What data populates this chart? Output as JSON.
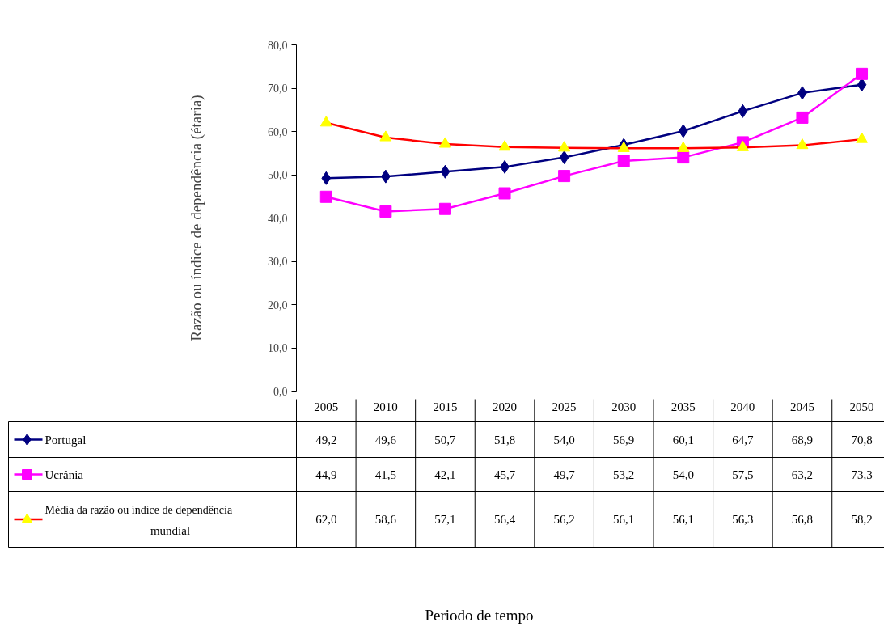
{
  "chart_data": {
    "type": "line",
    "ylabel": "Razão ou índice de dependência (étaria)",
    "annotations": [
      "Periodo de tempo"
    ],
    "categories": [
      "2005",
      "2010",
      "2015",
      "2020",
      "2025",
      "2030",
      "2035",
      "2040",
      "2045",
      "2050"
    ],
    "series": [
      {
        "name": "Portugal",
        "color": "#000080",
        "marker": "diamond",
        "values": [
          49.2,
          49.6,
          50.7,
          51.8,
          54.0,
          56.9,
          60.1,
          64.7,
          68.9,
          70.8
        ],
        "value_labels": [
          "49,2",
          "49,6",
          "50,7",
          "51,8",
          "54,0",
          "56,9",
          "60,1",
          "64,7",
          "68,9",
          "70,8"
        ]
      },
      {
        "name": "Ucrânia",
        "color": "#ff00ff",
        "marker": "square",
        "values": [
          44.9,
          41.5,
          42.1,
          45.7,
          49.7,
          53.2,
          54.0,
          57.5,
          63.2,
          73.3
        ],
        "value_labels": [
          "44,9",
          "41,5",
          "42,1",
          "45,7",
          "49,7",
          "53,2",
          "54,0",
          "57,5",
          "63,2",
          "73,3"
        ]
      },
      {
        "name": "Média da razão ou índice de dependência mundial",
        "color": "#ff0000",
        "colors": [
          "#ffff00",
          "#ffff00",
          "#ffff00",
          "#ffff00",
          "#ffff00",
          "#ffff00",
          "#ffff00",
          "#ffff00",
          "#ffff00",
          "#ffff00"
        ],
        "marker": "triangle",
        "values": [
          62.0,
          58.6,
          57.1,
          56.4,
          56.2,
          56.1,
          56.1,
          56.3,
          56.8,
          58.2
        ],
        "value_labels": [
          "62,0",
          "58,6",
          "57,1",
          "56,4",
          "56,2",
          "56,1",
          "56,1",
          "56,3",
          "56,8",
          "58,2"
        ]
      }
    ],
    "ylim": [
      0,
      80
    ],
    "yticks": [
      {
        "value": 0,
        "label": "0,0"
      },
      {
        "value": 10,
        "label": "10,0"
      },
      {
        "value": 20,
        "label": "20,0"
      },
      {
        "value": 30,
        "label": "30,0"
      },
      {
        "value": 40,
        "label": "40,0"
      },
      {
        "value": 50,
        "label": "50,0"
      },
      {
        "value": 60,
        "label": "60,0"
      },
      {
        "value": 70,
        "label": "70,0"
      },
      {
        "value": 80,
        "label": "80,0"
      }
    ],
    "grid": false,
    "legend": "bottom",
    "line_style": "solid"
  }
}
